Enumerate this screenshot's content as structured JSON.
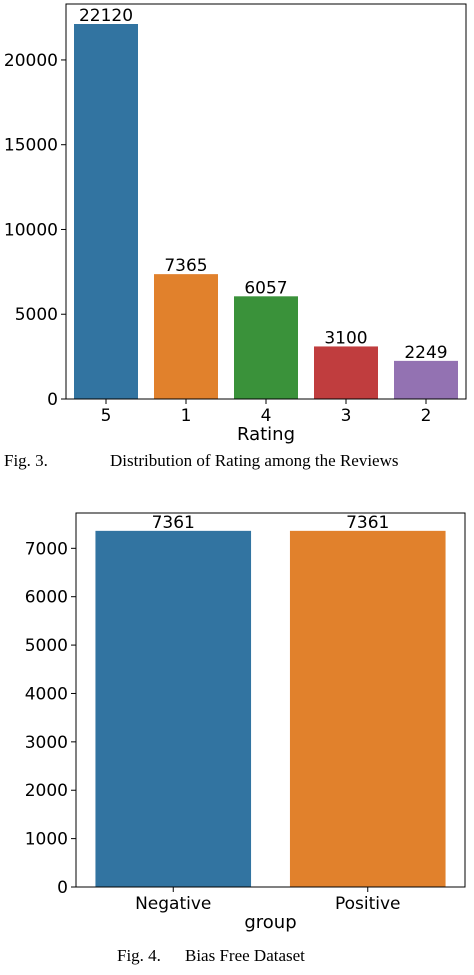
{
  "chart_data": [
    {
      "type": "bar",
      "categories": [
        "5",
        "1",
        "4",
        "3",
        "2"
      ],
      "values": [
        22120,
        7365,
        6057,
        3100,
        2249
      ],
      "data_labels": [
        "22120",
        "7365",
        "6057",
        "3100",
        "2249"
      ],
      "xlabel": "Rating",
      "ylabel": "",
      "ylim": [
        0,
        23300
      ],
      "yticks": [
        0,
        5000,
        10000,
        15000,
        20000
      ],
      "ytick_labels": [
        "0",
        "5000",
        "10000",
        "15000",
        "20000"
      ],
      "colors": [
        "#3274a1",
        "#e1812c",
        "#3a923a",
        "#c03d3e",
        "#9372b2"
      ],
      "grid": false,
      "caption_num": "Fig. 3.",
      "caption_text": "Distribution of Rating among the Reviews"
    },
    {
      "type": "bar",
      "categories": [
        "Negative",
        "Positive"
      ],
      "values": [
        7361,
        7361
      ],
      "data_labels": [
        "7361",
        "7361"
      ],
      "xlabel": "group",
      "ylabel": "",
      "ylim": [
        0,
        7730
      ],
      "yticks": [
        0,
        1000,
        2000,
        3000,
        4000,
        5000,
        6000,
        7000
      ],
      "ytick_labels": [
        "0",
        "1000",
        "2000",
        "3000",
        "4000",
        "5000",
        "6000",
        "7000"
      ],
      "colors": [
        "#3274a1",
        "#e1812c"
      ],
      "grid": false,
      "caption_num": "Fig. 4.",
      "caption_text": "Bias Free Dataset"
    }
  ]
}
